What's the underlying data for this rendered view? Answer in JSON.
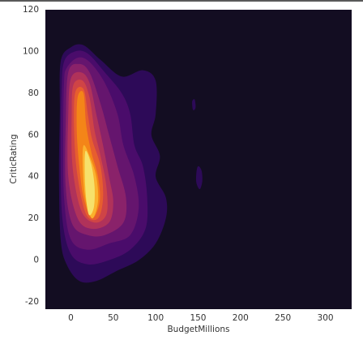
{
  "chart_data": {
    "type": "kde",
    "x_label": "BudgetMillions",
    "y_label": "CriticRating",
    "xlim": [
      -30,
      331
    ],
    "ylim": [
      -23.5,
      120
    ],
    "xticks": [
      0,
      50,
      100,
      150,
      200,
      250,
      300
    ],
    "yticks": [
      -20,
      0,
      20,
      40,
      60,
      80,
      100,
      120
    ],
    "background": "#130d22",
    "contours": [
      {
        "color": "#2d0a58",
        "x": [
          -12,
          0,
          15,
          35,
          60,
          85,
          100,
          100,
          95,
          105,
          100,
          112,
          112,
          100,
          80,
          55,
          30,
          10,
          -5,
          -12,
          -14,
          -13
        ],
        "y": [
          95,
          102,
          103,
          96,
          88,
          91,
          86,
          70,
          60,
          50,
          40,
          30,
          20,
          8,
          0,
          -5,
          -10,
          -10,
          -2,
          10,
          40,
          70
        ]
      },
      {
        "color": "#2d0a58",
        "x": [
          143,
          146,
          147,
          144
        ],
        "y": [
          76,
          77,
          73,
          72
        ]
      },
      {
        "color": "#2d0a58",
        "x": [
          150,
          154,
          155,
          152,
          148,
          148
        ],
        "y": [
          45,
          43,
          38,
          34,
          37,
          42
        ]
      },
      {
        "color": "#4a0c6b",
        "x": [
          -8,
          5,
          20,
          40,
          60,
          70,
          75,
          85,
          90,
          88,
          70,
          45,
          20,
          0,
          -10,
          -12,
          -11
        ],
        "y": [
          95,
          100,
          99,
          90,
          80,
          70,
          55,
          45,
          30,
          15,
          5,
          0,
          -2,
          3,
          20,
          50,
          80
        ]
      },
      {
        "color": "#65156e",
        "x": [
          -5,
          8,
          22,
          40,
          55,
          62,
          75,
          80,
          70,
          45,
          20,
          0,
          -8,
          -9,
          -8
        ],
        "y": [
          92,
          97,
          95,
          85,
          70,
          55,
          40,
          25,
          12,
          8,
          5,
          10,
          30,
          60,
          85
        ]
      },
      {
        "color": "#8a226a",
        "x": [
          -3,
          10,
          22,
          35,
          45,
          55,
          65,
          62,
          40,
          20,
          2,
          -6,
          -6
        ],
        "y": [
          90,
          94,
          90,
          75,
          60,
          45,
          30,
          18,
          12,
          12,
          17,
          35,
          65
        ]
      },
      {
        "color": "#b0325a",
        "x": [
          0,
          12,
          22,
          30,
          38,
          45,
          50,
          45,
          25,
          8,
          -3,
          -3
        ],
        "y": [
          87,
          90,
          85,
          70,
          55,
          40,
          28,
          18,
          15,
          20,
          40,
          70
        ]
      },
      {
        "color": "#cf4446",
        "x": [
          3,
          14,
          22,
          28,
          35,
          42,
          42,
          28,
          12,
          2,
          1
        ],
        "y": [
          84,
          86,
          78,
          62,
          50,
          35,
          22,
          18,
          24,
          45,
          70
        ]
      },
      {
        "color": "#e75e2e",
        "x": [
          5,
          15,
          20,
          25,
          35,
          38,
          32,
          18,
          8,
          4
        ],
        "y": [
          80,
          82,
          70,
          58,
          45,
          30,
          20,
          22,
          40,
          60
        ]
      },
      {
        "color": "#f48518",
        "x": [
          8,
          15,
          18,
          24,
          32,
          34,
          25,
          15,
          10,
          7
        ],
        "y": [
          78,
          80,
          65,
          52,
          40,
          28,
          20,
          30,
          45,
          62
        ]
      },
      {
        "color": "#fbb12d",
        "x": [
          15,
          22,
          30,
          32,
          25,
          17,
          14
        ],
        "y": [
          55,
          50,
          40,
          28,
          20,
          30,
          45
        ]
      },
      {
        "color": "#f6e16b",
        "x": [
          17,
          24,
          28,
          27,
          21,
          17
        ],
        "y": [
          52,
          46,
          35,
          25,
          22,
          35
        ]
      }
    ]
  }
}
